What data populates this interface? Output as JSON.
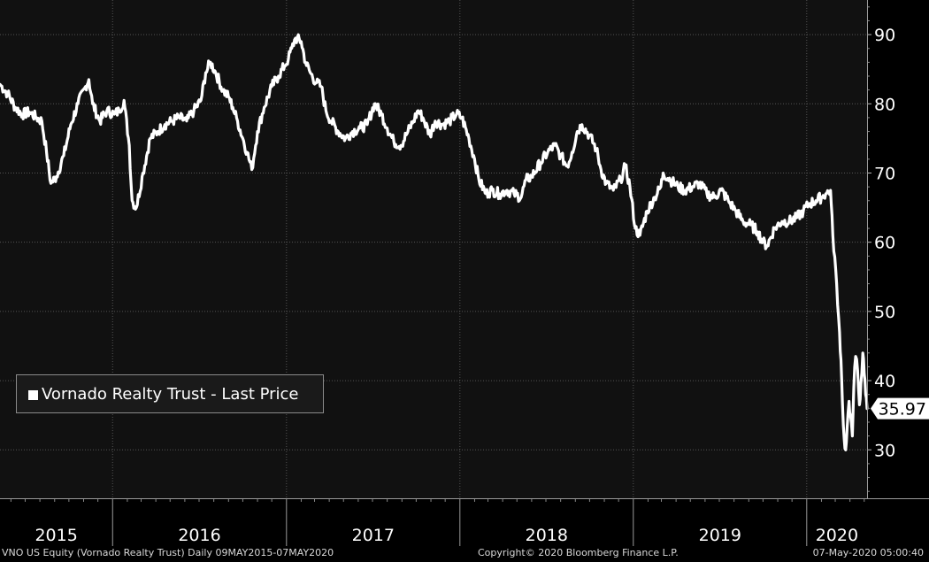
{
  "chart_data": {
    "type": "line",
    "title": "",
    "xlabel": "",
    "ylabel": "",
    "x_range": [
      "2015-05-09",
      "2020-05-07"
    ],
    "ylim": [
      23,
      95
    ],
    "yticks": [
      30,
      40,
      50,
      60,
      70,
      80,
      90
    ],
    "ytick_labels": [
      "30",
      "40",
      "50",
      "60",
      "70",
      "80",
      "90"
    ],
    "year_labels": [
      "2015",
      "2016",
      "2017",
      "2018",
      "2019",
      "2020"
    ],
    "grid": true,
    "grid_style": "dotted",
    "legend_position": "bottom-left",
    "last_value": 35.97,
    "last_value_label": "35.97",
    "series": [
      {
        "name": "Vornado Realty Trust - Last Price",
        "color": "#ffffff",
        "points": [
          [
            "2015-05-09",
            82.8
          ],
          [
            "2015-05-25",
            81.5
          ],
          [
            "2015-06-10",
            79.5
          ],
          [
            "2015-06-25",
            78.5
          ],
          [
            "2015-07-10",
            78.8
          ],
          [
            "2015-07-25",
            78.0
          ],
          [
            "2015-08-05",
            77.5
          ],
          [
            "2015-08-15",
            73.0
          ],
          [
            "2015-08-24",
            68.5
          ],
          [
            "2015-09-05",
            69.5
          ],
          [
            "2015-09-20",
            72.5
          ],
          [
            "2015-10-05",
            77.0
          ],
          [
            "2015-10-20",
            80.0
          ],
          [
            "2015-11-05",
            82.5
          ],
          [
            "2015-11-12",
            83.5
          ],
          [
            "2015-11-20",
            80.0
          ],
          [
            "2015-12-05",
            77.5
          ],
          [
            "2015-12-20",
            79.0
          ],
          [
            "2016-01-05",
            78.5
          ],
          [
            "2016-01-15",
            79.0
          ],
          [
            "2016-01-25",
            80.5
          ],
          [
            "2016-02-05",
            74.0
          ],
          [
            "2016-02-11",
            66.0
          ],
          [
            "2016-02-20",
            65.0
          ],
          [
            "2016-03-05",
            70.0
          ],
          [
            "2016-03-20",
            75.0
          ],
          [
            "2016-04-05",
            76.0
          ],
          [
            "2016-04-20",
            77.0
          ],
          [
            "2016-05-05",
            77.5
          ],
          [
            "2016-05-20",
            78.0
          ],
          [
            "2016-06-05",
            77.5
          ],
          [
            "2016-06-20",
            79.0
          ],
          [
            "2016-07-05",
            80.5
          ],
          [
            "2016-07-15",
            84.5
          ],
          [
            "2016-07-25",
            86.0
          ],
          [
            "2016-08-05",
            84.5
          ],
          [
            "2016-08-20",
            82.0
          ],
          [
            "2016-09-01",
            81.0
          ],
          [
            "2016-09-10",
            79.5
          ],
          [
            "2016-09-20",
            77.5
          ],
          [
            "2016-10-01",
            75.0
          ],
          [
            "2016-10-10",
            73.0
          ],
          [
            "2016-10-20",
            70.5
          ],
          [
            "2016-11-01",
            76.0
          ],
          [
            "2016-11-15",
            79.5
          ],
          [
            "2016-12-01",
            82.5
          ],
          [
            "2016-12-15",
            84.0
          ],
          [
            "2016-12-28",
            85.5
          ],
          [
            "2017-01-05",
            86.5
          ],
          [
            "2017-01-12",
            88.0
          ],
          [
            "2017-01-20",
            89.5
          ],
          [
            "2017-02-01",
            89.0
          ],
          [
            "2017-02-10",
            86.0
          ],
          [
            "2017-02-20",
            84.5
          ],
          [
            "2017-03-05",
            83.0
          ],
          [
            "2017-03-15",
            82.5
          ],
          [
            "2017-03-25",
            79.0
          ],
          [
            "2017-04-05",
            77.5
          ],
          [
            "2017-04-20",
            76.0
          ],
          [
            "2017-05-05",
            75.0
          ],
          [
            "2017-05-20",
            76.0
          ],
          [
            "2017-06-05",
            76.5
          ],
          [
            "2017-06-20",
            77.0
          ],
          [
            "2017-07-05",
            80.0
          ],
          [
            "2017-07-20",
            78.5
          ],
          [
            "2017-08-01",
            76.5
          ],
          [
            "2017-08-15",
            74.5
          ],
          [
            "2017-08-30",
            74.0
          ],
          [
            "2017-09-10",
            75.5
          ],
          [
            "2017-09-25",
            77.5
          ],
          [
            "2017-10-05",
            79.0
          ],
          [
            "2017-10-15",
            78.0
          ],
          [
            "2017-10-30",
            75.5
          ],
          [
            "2017-11-10",
            77.5
          ],
          [
            "2017-11-25",
            77.0
          ],
          [
            "2017-12-10",
            77.5
          ],
          [
            "2017-12-25",
            78.5
          ],
          [
            "2018-01-05",
            78.0
          ],
          [
            "2018-01-20",
            75.0
          ],
          [
            "2018-02-01",
            72.0
          ],
          [
            "2018-02-10",
            69.0
          ],
          [
            "2018-02-25",
            67.0
          ],
          [
            "2018-03-10",
            67.5
          ],
          [
            "2018-03-25",
            67.0
          ],
          [
            "2018-04-10",
            67.5
          ],
          [
            "2018-04-25",
            67.0
          ],
          [
            "2018-05-10",
            66.5
          ],
          [
            "2018-05-20",
            69.0
          ],
          [
            "2018-06-01",
            69.5
          ],
          [
            "2018-06-20",
            71.5
          ],
          [
            "2018-07-05",
            73.0
          ],
          [
            "2018-07-20",
            74.0
          ],
          [
            "2018-08-01",
            72.5
          ],
          [
            "2018-08-15",
            71.0
          ],
          [
            "2018-08-25",
            73.0
          ],
          [
            "2018-09-05",
            76.0
          ],
          [
            "2018-09-15",
            77.0
          ],
          [
            "2018-09-30",
            75.5
          ],
          [
            "2018-10-15",
            73.5
          ],
          [
            "2018-10-25",
            70.5
          ],
          [
            "2018-11-05",
            68.5
          ],
          [
            "2018-11-20",
            67.5
          ],
          [
            "2018-12-05",
            69.0
          ],
          [
            "2018-12-15",
            71.0
          ],
          [
            "2018-12-25",
            68.0
          ],
          [
            "2019-01-05",
            62.0
          ],
          [
            "2019-01-15",
            61.0
          ],
          [
            "2019-01-30",
            64.5
          ],
          [
            "2019-02-15",
            66.5
          ],
          [
            "2019-02-28",
            68.0
          ],
          [
            "2019-03-05",
            70.0
          ],
          [
            "2019-03-20",
            69.0
          ],
          [
            "2019-04-05",
            68.0
          ],
          [
            "2019-04-20",
            67.5
          ],
          [
            "2019-05-05",
            68.0
          ],
          [
            "2019-05-20",
            68.5
          ],
          [
            "2019-06-05",
            67.0
          ],
          [
            "2019-06-20",
            66.5
          ],
          [
            "2019-07-05",
            67.5
          ],
          [
            "2019-07-20",
            66.0
          ],
          [
            "2019-08-05",
            64.5
          ],
          [
            "2019-08-20",
            63.0
          ],
          [
            "2019-09-05",
            62.5
          ],
          [
            "2019-09-20",
            61.5
          ],
          [
            "2019-10-01",
            60.0
          ],
          [
            "2019-10-10",
            59.5
          ],
          [
            "2019-10-25",
            62.0
          ],
          [
            "2019-11-10",
            63.0
          ],
          [
            "2019-11-25",
            63.0
          ],
          [
            "2019-12-10",
            63.5
          ],
          [
            "2019-12-25",
            64.5
          ],
          [
            "2020-01-05",
            65.5
          ],
          [
            "2020-01-20",
            66.0
          ],
          [
            "2020-02-01",
            66.5
          ],
          [
            "2020-02-10",
            67.0
          ],
          [
            "2020-02-20",
            67.5
          ],
          [
            "2020-02-25",
            61.0
          ],
          [
            "2020-03-02",
            56.0
          ],
          [
            "2020-03-06",
            51.0
          ],
          [
            "2020-03-10",
            47.0
          ],
          [
            "2020-03-13",
            43.0
          ],
          [
            "2020-03-16",
            37.0
          ],
          [
            "2020-03-18",
            33.5
          ],
          [
            "2020-03-20",
            31.5
          ],
          [
            "2020-03-23",
            30.0
          ],
          [
            "2020-03-26",
            33.0
          ],
          [
            "2020-03-30",
            37.0
          ],
          [
            "2020-04-02",
            35.0
          ],
          [
            "2020-04-06",
            32.0
          ],
          [
            "2020-04-09",
            39.0
          ],
          [
            "2020-04-13",
            43.5
          ],
          [
            "2020-04-17",
            41.5
          ],
          [
            "2020-04-21",
            36.5
          ],
          [
            "2020-04-24",
            39.5
          ],
          [
            "2020-04-28",
            44.0
          ],
          [
            "2020-05-01",
            41.0
          ],
          [
            "2020-05-04",
            38.0
          ],
          [
            "2020-05-07",
            35.97
          ]
        ]
      }
    ]
  },
  "footer": {
    "left": "VNO US Equity (Vornado Realty Trust)  Daily 09MAY2015-07MAY2020",
    "center": "Copyright© 2020 Bloomberg Finance L.P.",
    "right": "07-May-2020 05:00:40"
  }
}
